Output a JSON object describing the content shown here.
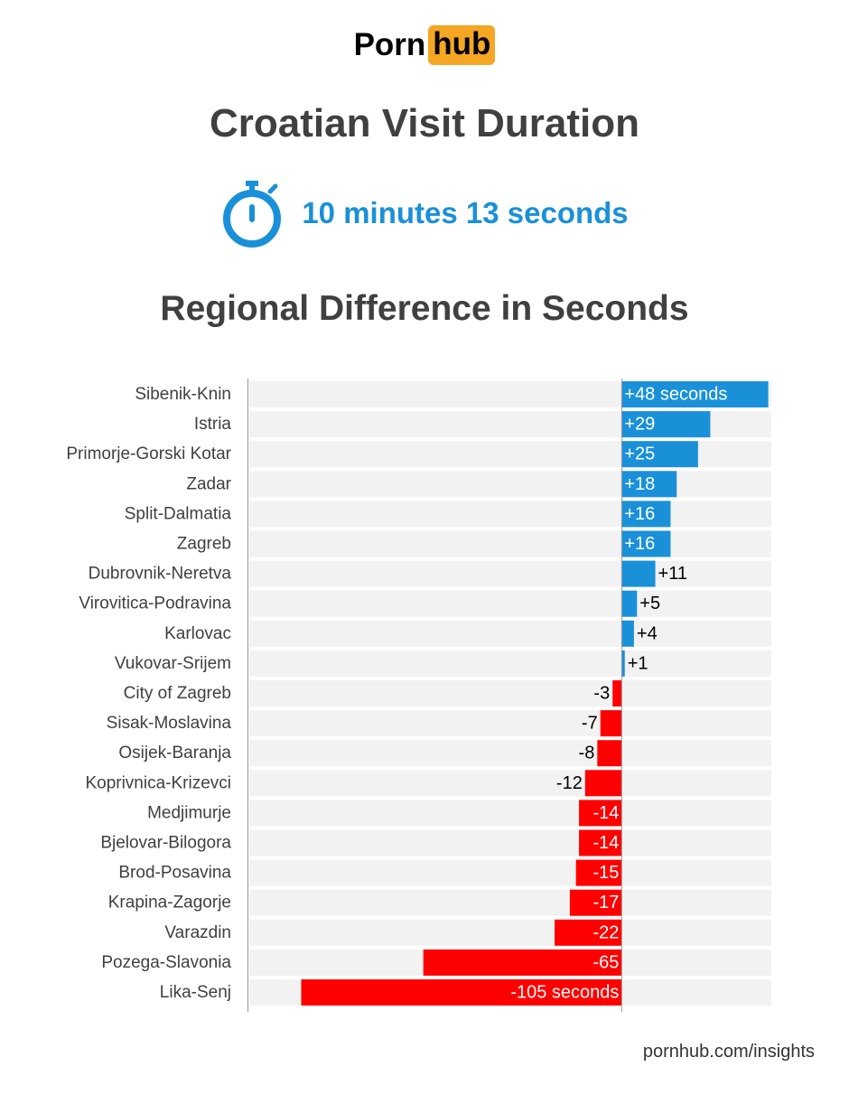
{
  "logo": {
    "part1": "Porn",
    "part2": "hub"
  },
  "title": "Croatian Visit Duration",
  "duration": {
    "text": "10 minutes 13 seconds",
    "icon": "stopwatch-icon"
  },
  "subtitle": "Regional Difference in Seconds",
  "footer": "pornhub.com/insights",
  "colors": {
    "positive": "#1a90d9",
    "negative": "#ff0000",
    "row_bg": "#f2f2f2",
    "text": "#404040",
    "accent": "#f5a623"
  },
  "chart_data": {
    "type": "bar",
    "orientation": "horizontal",
    "title": "Regional Difference in Seconds",
    "categories": [
      "Sibenik-Knin",
      "Istria",
      "Primorje-Gorski Kotar",
      "Zadar",
      "Split-Dalmatia",
      "Zagreb",
      "Dubrovnik-Neretva",
      "Virovitica-Podravina",
      "Karlovac",
      "Vukovar-Srijem",
      "City of Zagreb",
      "Sisak-Moslavina",
      "Osijek-Baranja",
      "Koprivnica-Krizevci",
      "Medjimurje",
      "Bjelovar-Bilogora",
      "Brod-Posavina",
      "Krapina-Zagorje",
      "Varazdin",
      "Pozega-Slavonia",
      "Lika-Senj"
    ],
    "values": [
      48,
      29,
      25,
      18,
      16,
      16,
      11,
      5,
      4,
      1,
      -3,
      -7,
      -8,
      -12,
      -14,
      -14,
      -15,
      -17,
      -22,
      -65,
      -105
    ],
    "labels": [
      "+48 seconds",
      "+29",
      "+25",
      "+18",
      "+16",
      "+16",
      "+11",
      "+5",
      "+4",
      "+1",
      "-3",
      "-7",
      "-8",
      "-12",
      "-14",
      "-14",
      "-15",
      "-17",
      "-22",
      "-65",
      "-105 seconds"
    ],
    "xlim": [
      -122,
      49
    ],
    "grid": false,
    "legend": "none"
  }
}
